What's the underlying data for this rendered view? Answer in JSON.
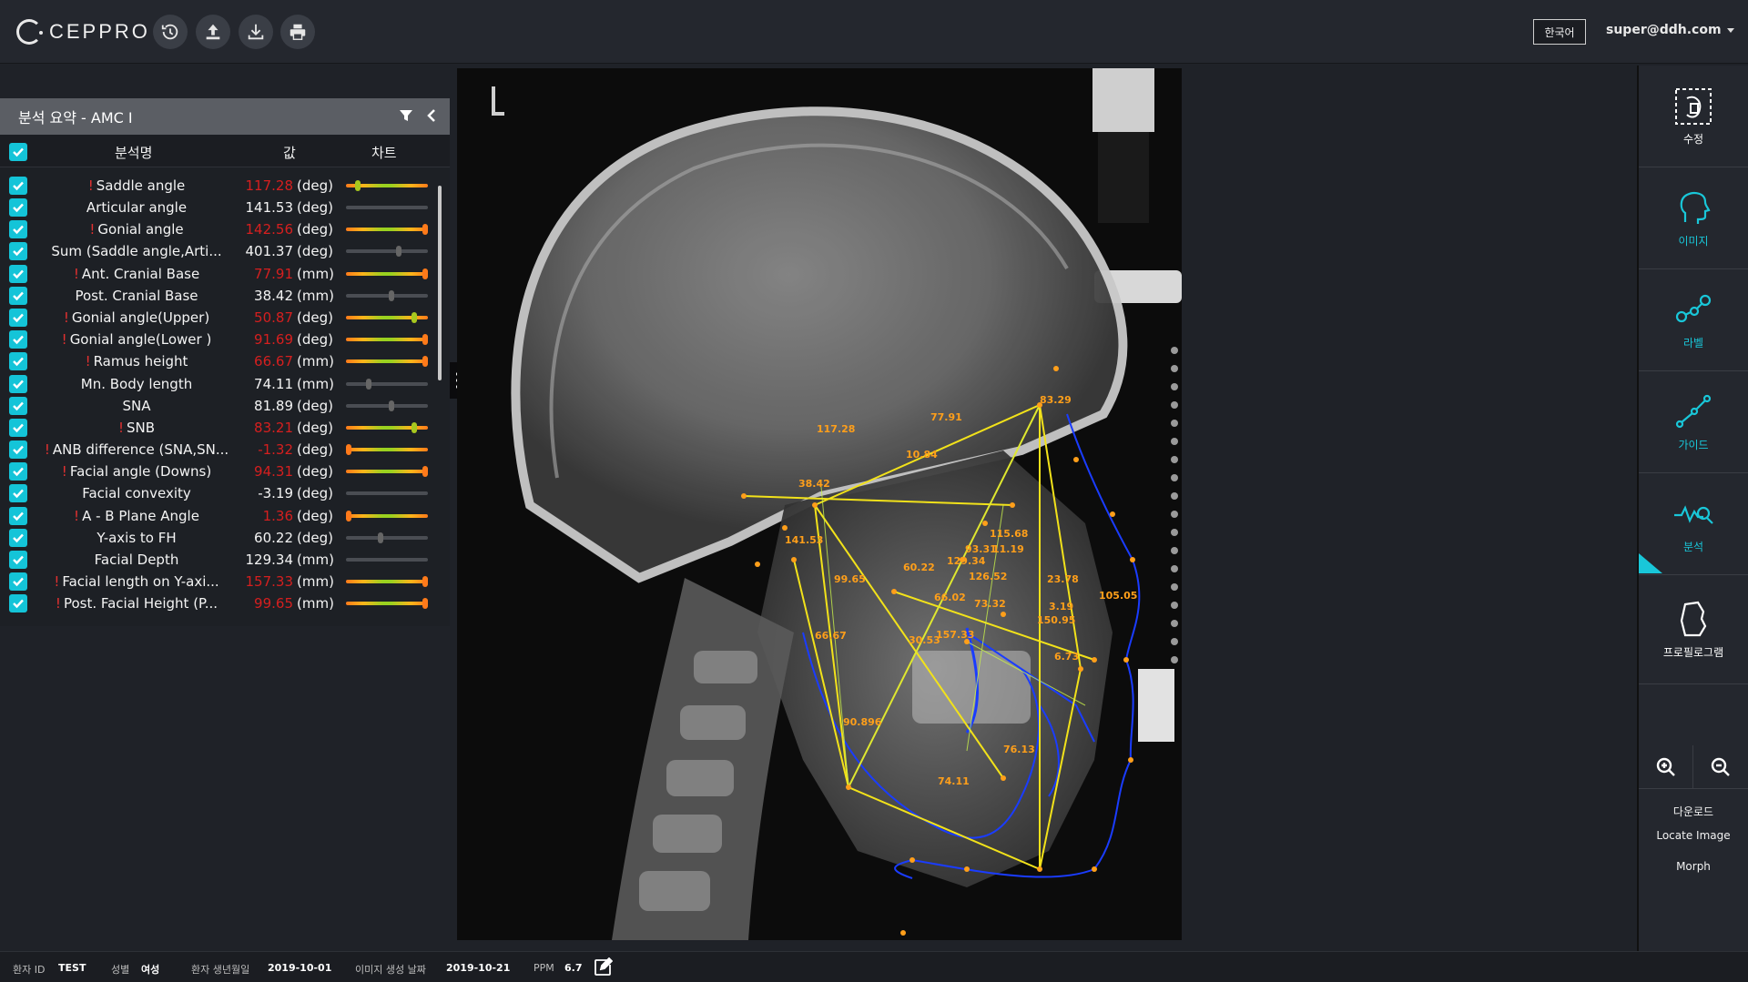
{
  "app": {
    "name": "CEPPRO"
  },
  "header": {
    "language": "한국어",
    "user": "super@ddh.com",
    "actions": [
      "history-icon",
      "upload-icon",
      "download-icon",
      "print-icon"
    ]
  },
  "panel": {
    "title": "분석 요약 - AMC I",
    "columns": {
      "name": "분석명",
      "value": "값",
      "chart": "차트"
    },
    "rows": [
      {
        "name": "Saddle angle",
        "value": "117.28",
        "unit": "(deg)",
        "abnormal": true,
        "pos": 0.14
      },
      {
        "name": "Articular angle",
        "value": "141.53",
        "unit": "(deg)",
        "abnormal": false,
        "pos": null
      },
      {
        "name": "Gonial angle",
        "value": "142.56",
        "unit": "(deg)",
        "abnormal": true,
        "pos": 0.97
      },
      {
        "name": "Sum (Saddle angle,Arti...",
        "value": "401.37",
        "unit": "(deg)",
        "abnormal": false,
        "pos": 0.64
      },
      {
        "name": "Ant. Cranial Base",
        "value": "77.91",
        "unit": "(mm)",
        "abnormal": true,
        "pos": 0.97
      },
      {
        "name": "Post. Cranial Base",
        "value": "38.42",
        "unit": "(mm)",
        "abnormal": false,
        "pos": 0.56
      },
      {
        "name": "Gonial angle(Upper)",
        "value": "50.87",
        "unit": "(deg)",
        "abnormal": true,
        "pos": 0.83
      },
      {
        "name": "Gonial angle(Lower )",
        "value": "91.69",
        "unit": "(deg)",
        "abnormal": true,
        "pos": 0.97
      },
      {
        "name": "Ramus height",
        "value": "66.67",
        "unit": "(mm)",
        "abnormal": true,
        "pos": 0.97
      },
      {
        "name": "Mn. Body length",
        "value": "74.11",
        "unit": "(mm)",
        "abnormal": false,
        "pos": 0.28
      },
      {
        "name": "SNA",
        "value": "81.89",
        "unit": "(deg)",
        "abnormal": false,
        "pos": 0.56
      },
      {
        "name": "SNB",
        "value": "83.21",
        "unit": "(deg)",
        "abnormal": true,
        "pos": 0.83
      },
      {
        "name": "ANB difference (SNA,SN...",
        "value": "-1.32",
        "unit": "(deg)",
        "abnormal": true,
        "pos": 0.03
      },
      {
        "name": "Facial angle (Downs)",
        "value": "94.31",
        "unit": "(deg)",
        "abnormal": true,
        "pos": 0.97
      },
      {
        "name": "Facial convexity",
        "value": "-3.19",
        "unit": "(deg)",
        "abnormal": false,
        "pos": null
      },
      {
        "name": "A - B Plane Angle",
        "value": "1.36",
        "unit": "(deg)",
        "abnormal": true,
        "pos": 0.03
      },
      {
        "name": "Y-axis to FH",
        "value": "60.22",
        "unit": "(deg)",
        "abnormal": false,
        "pos": 0.42
      },
      {
        "name": "Facial Depth",
        "value": "129.34",
        "unit": "(mm)",
        "abnormal": false,
        "pos": null
      },
      {
        "name": "Facial length on Y-axi...",
        "value": "157.33",
        "unit": "(mm)",
        "abnormal": true,
        "pos": 0.97
      },
      {
        "name": "Post. Facial Height (P...",
        "value": "99.65",
        "unit": "(mm)",
        "abnormal": true,
        "pos": 0.97
      }
    ]
  },
  "xray": {
    "labels": [
      "77.91",
      "83.29",
      "117.28",
      "10.84",
      "38.42",
      "115.68",
      "93.31",
      "11.19",
      "129.34",
      "141.53",
      "126.52",
      "23.78",
      "99.65",
      "60.22",
      "105.05",
      "66.02",
      "73.32",
      "3.19",
      "150.95",
      "66.67",
      "30.53",
      "157.33",
      "6.73",
      "90.896",
      "76.13",
      "74.11"
    ]
  },
  "toolbar": {
    "items": [
      {
        "name": "edit",
        "label": "수정",
        "icon": "edit-frame-icon"
      },
      {
        "name": "image",
        "label": "이미지",
        "icon": "head-profile-icon"
      },
      {
        "name": "label",
        "label": "라벨",
        "icon": "landmark-icon"
      },
      {
        "name": "guide",
        "label": "가이드",
        "icon": "guide-line-icon"
      },
      {
        "name": "analysis",
        "label": "분석",
        "icon": "analysis-icon"
      },
      {
        "name": "profilogram",
        "label": "프로필로그램",
        "icon": "profile-shape-icon"
      }
    ],
    "download": "다운로드",
    "locate": "Locate Image",
    "morph": "Morph"
  },
  "status": {
    "patient_id_label": "환자 ID",
    "patient_id": "TEST",
    "sex_label": "성별",
    "sex": "여성",
    "birth_label": "환자 생년월일",
    "birth": "2019-10-01",
    "image_date_label": "이미지 생성 날짜",
    "image_date": "2019-10-21",
    "ppm_label": "PPM",
    "ppm": "6.7"
  }
}
